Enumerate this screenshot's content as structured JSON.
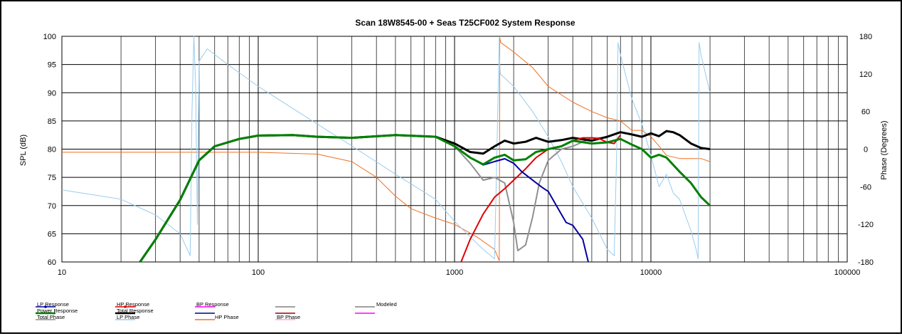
{
  "chart_data": {
    "type": "line",
    "title": "Scan 18W8545-00  + Seas T25CF002     System Response",
    "xlabel": "",
    "ylabel": "SPL (dB)",
    "y2label": "Phase (Degrees)",
    "xscale": "log",
    "xlim": [
      10,
      100000
    ],
    "ylim": [
      60,
      100
    ],
    "y2lim": [
      -180,
      180
    ],
    "grid": true,
    "legend_position": "bottom-left",
    "x_ticks": [
      "10",
      "100",
      "1000",
      "10000",
      "100000"
    ],
    "y_ticks": [
      "60",
      "65",
      "70",
      "75",
      "80",
      "85",
      "90",
      "95",
      "100"
    ],
    "y2_ticks": [
      "-180",
      "-120",
      "-60",
      "0",
      "60",
      "120",
      "180"
    ],
    "series": [
      {
        "name": "LP Response",
        "color": "#0000a0",
        "axis": "left",
        "x": [
          25,
          30,
          40,
          50,
          60,
          80,
          100,
          150,
          200,
          300,
          500,
          800,
          1000,
          1200,
          1400,
          1600,
          1800,
          2000,
          2200,
          2500,
          2800,
          3000,
          3300,
          3700,
          4000,
          4500,
          4800
        ],
        "y": [
          60,
          64,
          71,
          78,
          80.5,
          81.8,
          82.4,
          82.5,
          82.2,
          82,
          82.5,
          82.2,
          80.5,
          78.5,
          77.2,
          77.8,
          78.3,
          77.5,
          76,
          74.5,
          73.2,
          72.5,
          70,
          67,
          66.5,
          64,
          60
        ]
      },
      {
        "name": "HP Response",
        "color": "#e00000",
        "axis": "left",
        "x": [
          1080,
          1200,
          1400,
          1600,
          1800,
          2000,
          2300,
          2600,
          3000,
          3500,
          4000,
          4500,
          5000,
          5500,
          6000,
          6500,
          7000
        ],
        "y": [
          60,
          64,
          68.5,
          71.5,
          73,
          74.5,
          76.5,
          78.5,
          80,
          80.5,
          81.5,
          82,
          82,
          81.8,
          81.2,
          81,
          82.5
        ]
      },
      {
        "name": "BP Response",
        "color": "#ff00ff",
        "axis": "left",
        "x": [],
        "y": []
      },
      {
        "name": "",
        "color": "#808080",
        "axis": "left",
        "x": [],
        "y": []
      },
      {
        "name": "Modeled",
        "color": "#808080",
        "axis": "left",
        "x": [],
        "y": []
      },
      {
        "name": "Power Response",
        "color": "#008000",
        "axis": "left",
        "x": [
          25,
          30,
          40,
          50,
          60,
          80,
          100,
          150,
          200,
          300,
          500,
          800,
          1000,
          1200,
          1400,
          1600,
          1800,
          2000,
          2300,
          2600,
          3000,
          3500,
          4000,
          5000,
          6000,
          7000,
          8000,
          9000,
          10000,
          11000,
          12000,
          14000,
          16000,
          18000,
          20000
        ],
        "y": [
          60,
          64,
          71,
          78,
          80.5,
          81.8,
          82.4,
          82.5,
          82.2,
          82,
          82.5,
          82.2,
          80.5,
          78.5,
          77.3,
          78.5,
          79,
          78,
          78.2,
          79.5,
          80,
          80.5,
          81.5,
          81,
          81.2,
          81.8,
          80.8,
          80,
          78.5,
          79,
          78.5,
          76,
          74,
          71.5,
          70
        ]
      },
      {
        "name": "Total Response",
        "color": "#000000",
        "axis": "left",
        "x": [
          25,
          30,
          40,
          50,
          60,
          80,
          100,
          150,
          200,
          300,
          500,
          800,
          1000,
          1200,
          1400,
          1600,
          1800,
          2000,
          2300,
          2600,
          3000,
          3500,
          4000,
          5000,
          6000,
          7000,
          8000,
          9000,
          10000,
          11000,
          12000,
          13000,
          14000,
          16000,
          18000,
          20000
        ],
        "y": [
          60,
          64,
          71,
          78,
          80.5,
          81.8,
          82.4,
          82.5,
          82.2,
          82,
          82.5,
          82.2,
          81,
          79.5,
          79.2,
          80.5,
          81.5,
          81,
          81.3,
          82,
          81.3,
          81.6,
          82,
          81.5,
          82.2,
          83,
          82.6,
          82.2,
          82.8,
          82.3,
          83.2,
          83,
          82.5,
          81,
          80.2,
          80
        ]
      },
      {
        "name": "",
        "color": "#000080",
        "axis": "left",
        "x": [],
        "y": []
      },
      {
        "name": "",
        "color": "#a00000",
        "axis": "left",
        "x": [],
        "y": []
      },
      {
        "name": "",
        "color": "#ff00ff",
        "axis": "left",
        "x": [],
        "y": []
      },
      {
        "name": "Total Phase",
        "color": "#909090",
        "axis": "left",
        "x": [
          1000,
          1200,
          1400,
          1600,
          1800,
          2000,
          2100,
          2300,
          2500,
          2700,
          3000,
          3500,
          4000,
          5000,
          6000
        ],
        "y": [
          80.5,
          77.5,
          74.5,
          75,
          74,
          67,
          62,
          63,
          68,
          74,
          78,
          80,
          80.5,
          82,
          82
        ]
      },
      {
        "name": "LP Phase",
        "color": "#99ccee",
        "axis": "right",
        "x": [
          10,
          20,
          30,
          40,
          45,
          46,
          47,
          48,
          49,
          50,
          55,
          70,
          100,
          200,
          300,
          500,
          800,
          1000,
          1200,
          1400,
          1600,
          1690,
          1700,
          1710,
          2000,
          2500,
          3000,
          3500,
          4000,
          5000,
          6000,
          6500,
          6700,
          6800,
          7000,
          8000,
          9000,
          10000,
          11000,
          12000,
          13000,
          14000,
          16000,
          17000,
          17400,
          17600,
          18000,
          20000
        ],
        "y": [
          -65,
          -80,
          -105,
          -135,
          -170,
          60,
          180,
          100,
          -120,
          140,
          160,
          135,
          100,
          40,
          5,
          -40,
          -80,
          -115,
          -140,
          -160,
          -175,
          178,
          135,
          120,
          100,
          60,
          20,
          -20,
          -60,
          -110,
          -160,
          -170,
          0,
          170,
          150,
          80,
          40,
          -10,
          -60,
          -40,
          -70,
          -80,
          -130,
          -160,
          -175,
          170,
          150,
          90
        ]
      },
      {
        "name": "HP Phase",
        "color": "#f07020",
        "axis": "right",
        "x": [
          10,
          100,
          200,
          300,
          400,
          500,
          600,
          800,
          1000,
          1300,
          1600,
          1690,
          1700,
          1720,
          2000,
          2500,
          3000,
          4000,
          5000,
          6000,
          7000,
          8000,
          9000,
          10000,
          11000,
          12000,
          14000,
          16000,
          18000,
          20000
        ],
        "y": [
          -5,
          -5,
          -8,
          -20,
          -45,
          -75,
          -95,
          -110,
          -120,
          -140,
          -160,
          -178,
          178,
          170,
          155,
          130,
          100,
          75,
          60,
          50,
          45,
          30,
          30,
          20,
          5,
          -10,
          -15,
          -15,
          -15,
          -20
        ]
      },
      {
        "name": "BP Phase",
        "color": "#ffaadd",
        "axis": "right",
        "x": [],
        "y": []
      }
    ]
  }
}
